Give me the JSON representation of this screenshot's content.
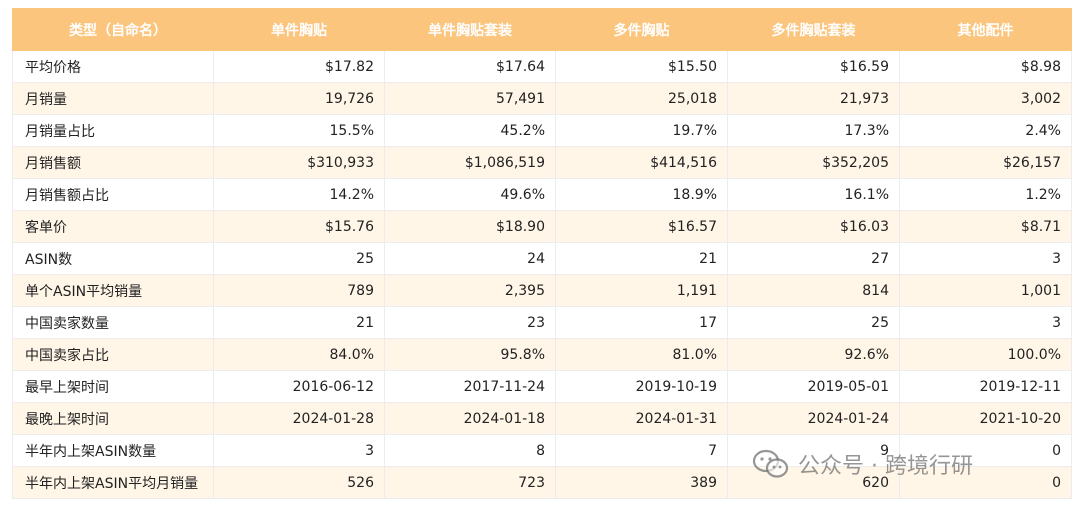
{
  "table": {
    "headers": [
      "类型（自命名）",
      "单件胸贴",
      "单件胸贴套装",
      "多件胸贴",
      "多件胸贴套装",
      "其他配件"
    ],
    "rows": [
      {
        "label": "平均价格",
        "values": [
          "$17.82",
          "$17.64",
          "$15.50",
          "$16.59",
          "$8.98"
        ]
      },
      {
        "label": "月销量",
        "values": [
          "19,726",
          "57,491",
          "25,018",
          "21,973",
          "3,002"
        ]
      },
      {
        "label": "月销量占比",
        "values": [
          "15.5%",
          "45.2%",
          "19.7%",
          "17.3%",
          "2.4%"
        ]
      },
      {
        "label": "月销售额",
        "values": [
          "$310,933",
          "$1,086,519",
          "$414,516",
          "$352,205",
          "$26,157"
        ]
      },
      {
        "label": "月销售额占比",
        "values": [
          "14.2%",
          "49.6%",
          "18.9%",
          "16.1%",
          "1.2%"
        ]
      },
      {
        "label": "客单价",
        "values": [
          "$15.76",
          "$18.90",
          "$16.57",
          "$16.03",
          "$8.71"
        ]
      },
      {
        "label": "ASIN数",
        "values": [
          "25",
          "24",
          "21",
          "27",
          "3"
        ]
      },
      {
        "label": "单个ASIN平均销量",
        "values": [
          "789",
          "2,395",
          "1,191",
          "814",
          "1,001"
        ]
      },
      {
        "label": "中国卖家数量",
        "values": [
          "21",
          "23",
          "17",
          "25",
          "3"
        ]
      },
      {
        "label": "中国卖家占比",
        "values": [
          "84.0%",
          "95.8%",
          "81.0%",
          "92.6%",
          "100.0%"
        ]
      },
      {
        "label": "最早上架时间",
        "values": [
          "2016-06-12",
          "2017-11-24",
          "2019-10-19",
          "2019-05-01",
          "2019-12-11"
        ]
      },
      {
        "label": "最晚上架时间",
        "values": [
          "2024-01-28",
          "2024-01-18",
          "2024-01-31",
          "2024-01-24",
          "2021-10-20"
        ]
      },
      {
        "label": "半年内上架ASIN数量",
        "values": [
          "3",
          "8",
          "7",
          "9",
          "0"
        ]
      },
      {
        "label": "半年内上架ASIN平均月销量",
        "values": [
          "526",
          "723",
          "389",
          "620",
          "0"
        ]
      }
    ]
  },
  "watermark": {
    "text": "公众号 · 跨境行研",
    "icon": "wechat-icon"
  },
  "colors": {
    "header_bg": "#fbc57d",
    "stripe_bg": "#fff6e8"
  }
}
